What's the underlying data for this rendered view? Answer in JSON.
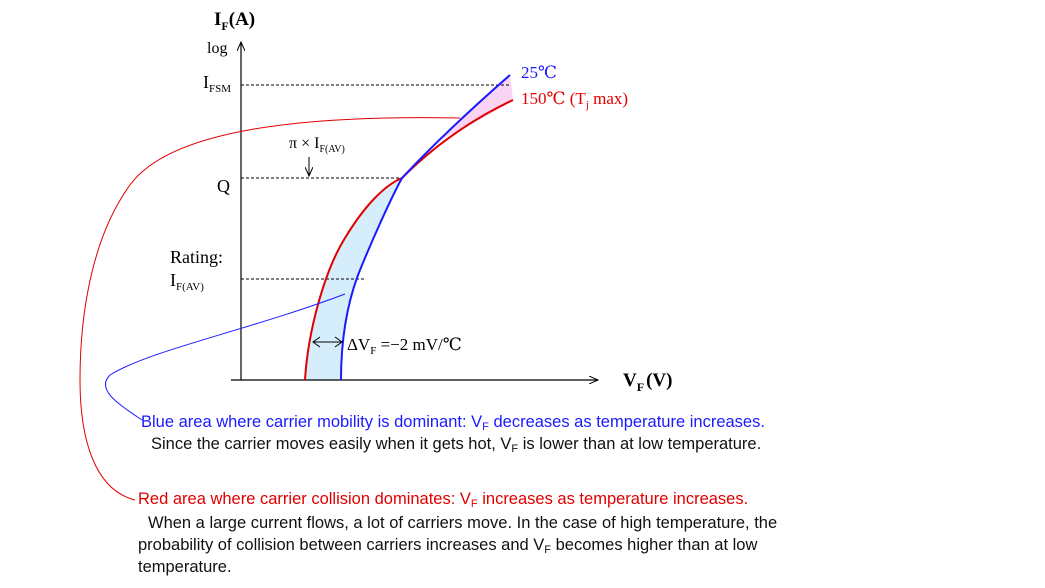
{
  "axes": {
    "y_title_main": "I",
    "y_title_sub": "F",
    "y_title_unit": "(A)",
    "y_scale": "log",
    "x_title_main": "V",
    "x_title_sub": "F",
    "x_title_unit": "(V)"
  },
  "y_labels": {
    "ifsm_main": "I",
    "ifsm_sub": "FSM",
    "q": "Q",
    "rating": "Rating:",
    "ifav_main": "I",
    "ifav_sub": "F(AV)"
  },
  "annotations": {
    "pi_prefix": "π × I",
    "pi_sub": "F(AV)",
    "delta_main": "ΔV",
    "delta_sub": "F",
    "delta_value": " =−2 mV/℃"
  },
  "legend": {
    "curve_25": "25℃",
    "curve_150_prefix": "150℃ (T",
    "curve_150_sub": "j",
    "curve_150_suffix": " max)"
  },
  "colors": {
    "blue": "#1a1aff",
    "red": "#e00000",
    "blue_fill": "#d6eefb",
    "pink_fill": "#fbd3f3"
  },
  "notes": {
    "blue_heading_a": "Blue area where carrier mobility is dominant: V",
    "blue_heading_sub": "F",
    "blue_heading_b": " decreases as temperature increases.",
    "blue_body_a": "Since the carrier moves easily when it gets hot, V",
    "blue_body_sub": "F",
    "blue_body_b": " is lower than at low temperature.",
    "red_heading_a": "Red area where carrier collision dominates: V",
    "red_heading_sub": "F",
    "red_heading_b": " increases as temperature increases.",
    "red_body_1": "When a large current flows, a lot of carriers move. In the case of high temperature, the",
    "red_body_2a": "probability of collision between carriers increases and V",
    "red_body_2sub": "F",
    "red_body_2b": " becomes higher than at low",
    "red_body_3": "temperature."
  }
}
